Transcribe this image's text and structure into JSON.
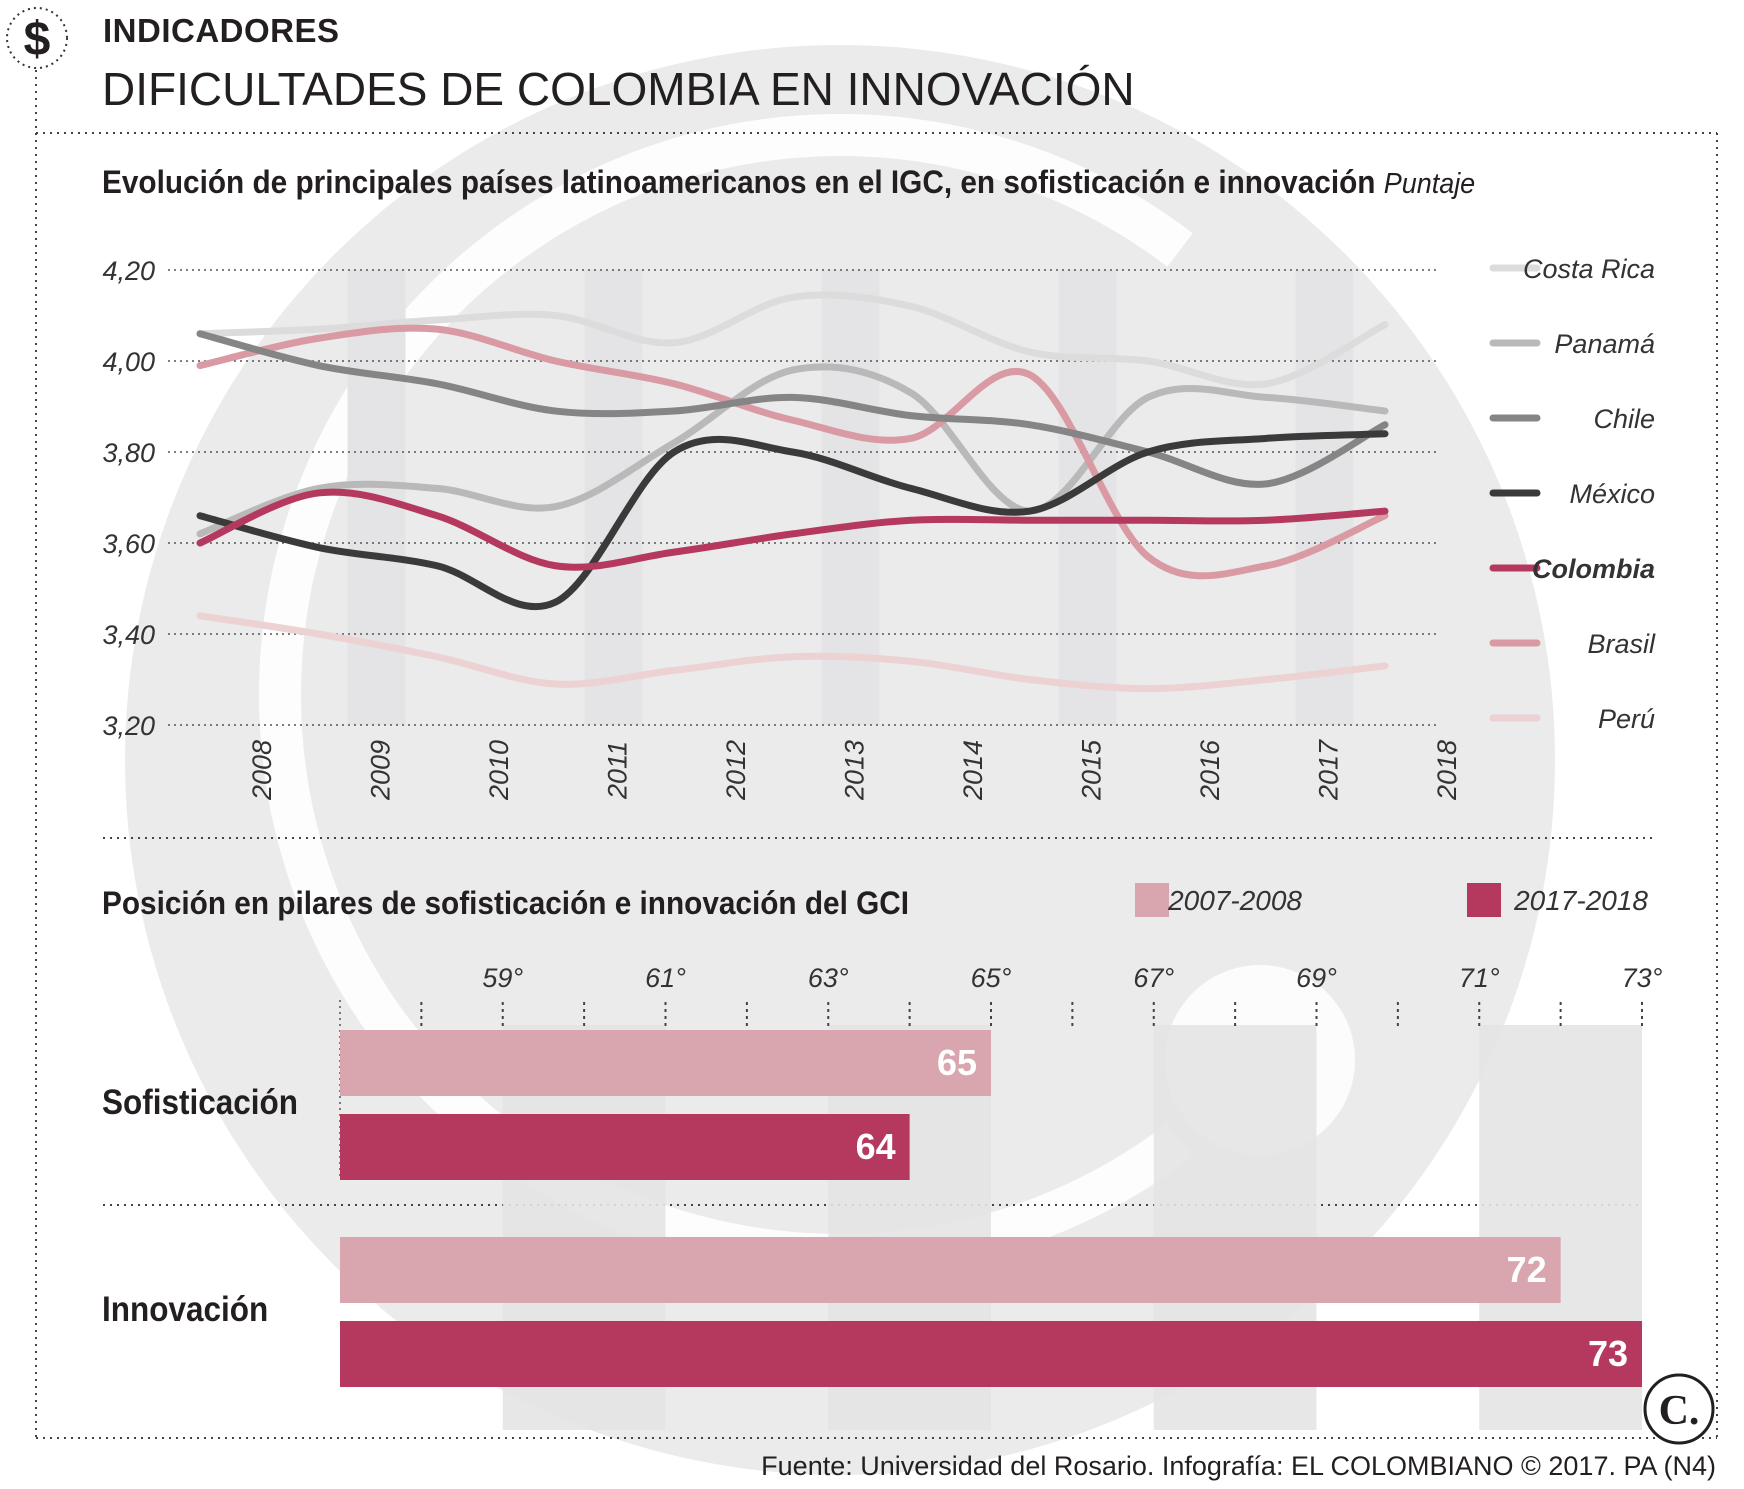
{
  "header": {
    "section": "INDICADORES",
    "title": "DIFICULTADES DE COLOMBIA EN INNOVACIÓN",
    "currency_icon": "dollar-sign"
  },
  "line_chart": {
    "subtitle": "Evolución de principales países latinoamericanos en el IGC, en sofisticación e innovación",
    "unit": "Puntaje"
  },
  "bar_chart": {
    "subtitle": "Posición en pilares de sofisticación e innovación del GCI"
  },
  "footer": {
    "source": "Fuente: Universidad del Rosario. Infografía: EL COLOMBIANO © 2017. PA (N4)",
    "logo_text": "C."
  },
  "colors": {
    "costa_rica": "#dcdcdc",
    "panama": "#b9b9b9",
    "chile": "#858585",
    "mexico": "#3a3a3a",
    "colombia": "#b5395f",
    "brasil": "#d99aa3",
    "peru": "#ecd2d3",
    "bar_old": "#d9a6af",
    "bar_new": "#b5395f",
    "grid_band": "#e4e4e6"
  },
  "chart_data": [
    {
      "type": "line",
      "title": "Evolución de principales países latinoamericanos en el IGC, en sofisticación e innovación",
      "ylabel": "Puntaje",
      "ylim": [
        3.2,
        4.2
      ],
      "y_ticks": [
        "4,20",
        "4,00",
        "3,80",
        "3,60",
        "3,40",
        "3,20"
      ],
      "x": [
        "2008",
        "2009",
        "2010",
        "2011",
        "2012",
        "2013",
        "2014",
        "2015",
        "2016",
        "2017",
        "2018"
      ],
      "series": [
        {
          "name": "Costa Rica",
          "values": [
            4.06,
            4.07,
            4.09,
            4.1,
            4.04,
            4.14,
            4.12,
            4.02,
            4.0,
            3.95,
            4.08
          ]
        },
        {
          "name": "Panamá",
          "values": [
            3.62,
            3.72,
            3.72,
            3.68,
            3.82,
            3.98,
            3.93,
            3.67,
            3.92,
            3.92,
            3.89
          ]
        },
        {
          "name": "Chile",
          "values": [
            4.06,
            3.99,
            3.95,
            3.89,
            3.89,
            3.92,
            3.88,
            3.86,
            3.8,
            3.73,
            3.86
          ]
        },
        {
          "name": "México",
          "values": [
            3.66,
            3.59,
            3.55,
            3.47,
            3.8,
            3.8,
            3.72,
            3.67,
            3.8,
            3.83,
            3.84
          ]
        },
        {
          "name": "Colombia",
          "values": [
            3.6,
            3.71,
            3.66,
            3.55,
            3.58,
            3.62,
            3.65,
            3.65,
            3.65,
            3.65,
            3.67
          ]
        },
        {
          "name": "Brasil",
          "values": [
            3.99,
            4.05,
            4.07,
            4.0,
            3.95,
            3.87,
            3.83,
            3.97,
            3.57,
            3.55,
            3.66
          ]
        },
        {
          "name": "Perú",
          "values": [
            3.44,
            3.4,
            3.35,
            3.29,
            3.32,
            3.35,
            3.34,
            3.3,
            3.28,
            3.3,
            3.33
          ]
        }
      ],
      "legend_position": "right",
      "emphasis": "Colombia"
    },
    {
      "type": "bar",
      "orientation": "horizontal",
      "title": "Posición en pilares de sofisticación e innovación del GCI",
      "categories": [
        "Sofisticación",
        "Innovación"
      ],
      "series": [
        {
          "name": "2007-2008",
          "values": [
            65,
            72
          ]
        },
        {
          "name": "2017-2018",
          "values": [
            64,
            73
          ]
        }
      ],
      "axis_ticks": [
        "59°",
        "61°",
        "63°",
        "65°",
        "67°",
        "69°",
        "71°",
        "73°"
      ],
      "xlim": [
        57,
        73
      ],
      "legend_position": "top-right"
    }
  ]
}
